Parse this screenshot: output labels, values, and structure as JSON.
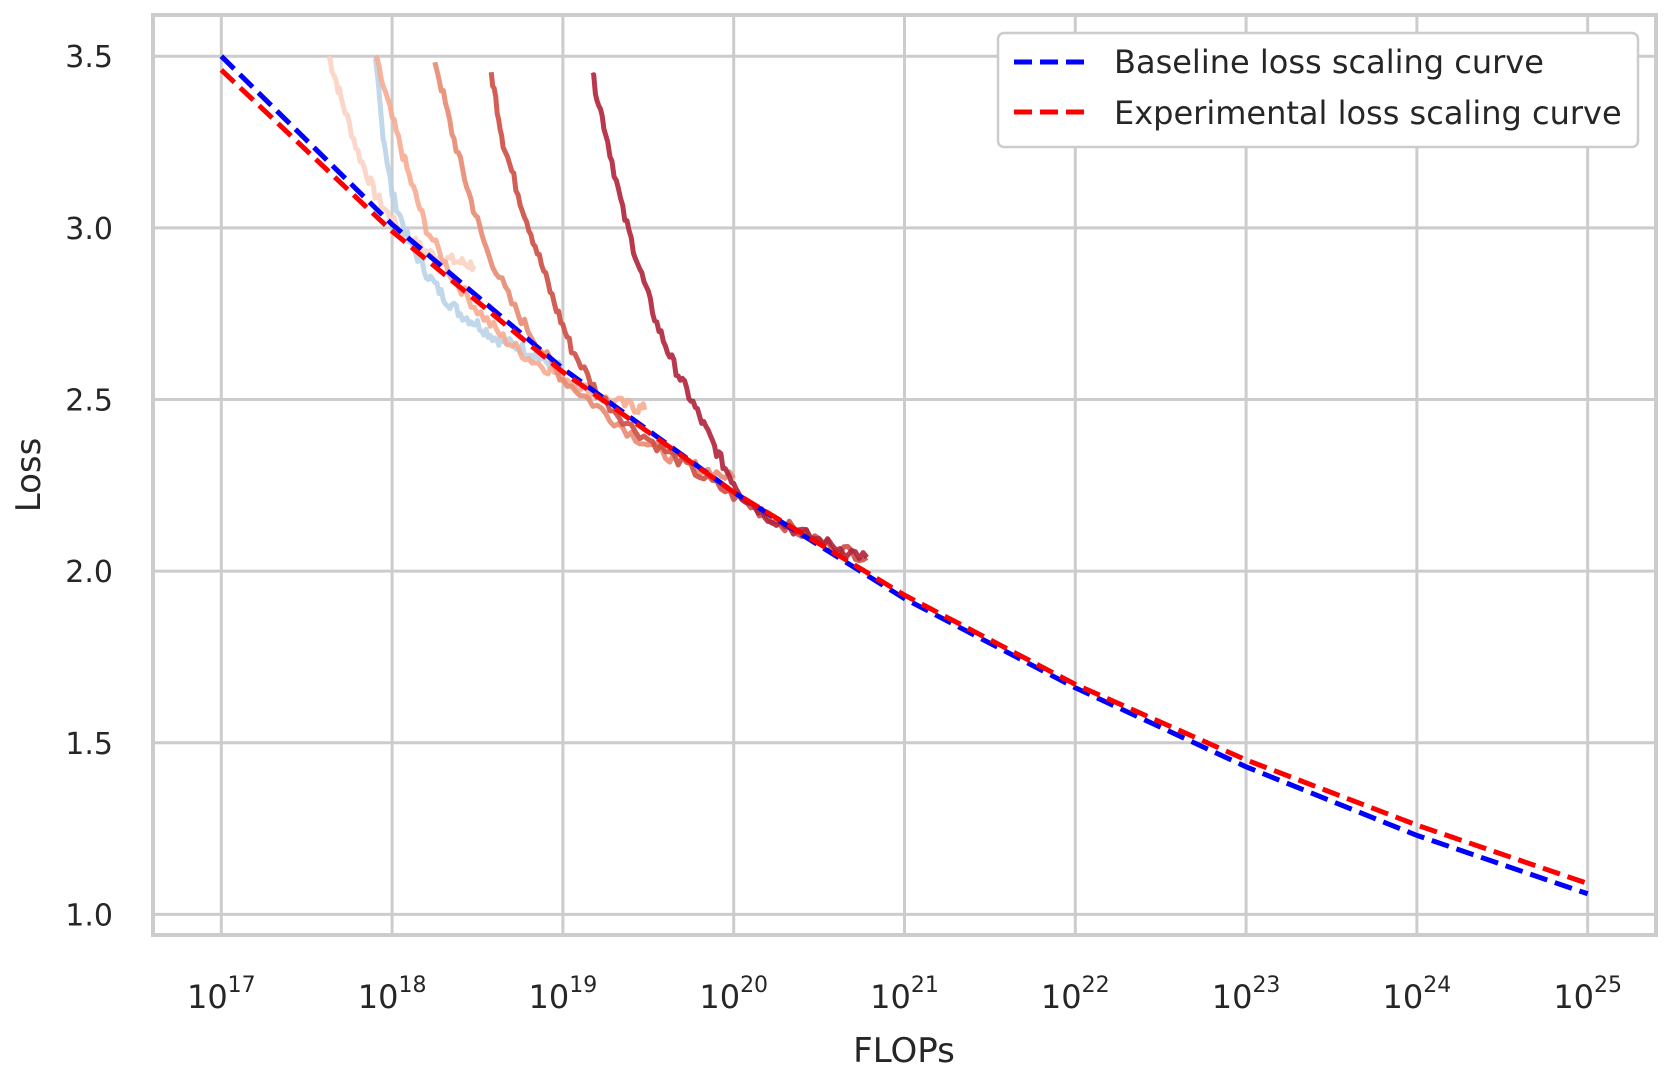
{
  "chart_data": {
    "type": "line",
    "title": "",
    "xlabel": "FLOPs",
    "ylabel": "Loss",
    "xscale": "log",
    "xlim_exponent": [
      16.6,
      25.4
    ],
    "ylim": [
      0.94,
      3.62
    ],
    "x_tick_base": "10",
    "x_tick_exponents": [
      "17",
      "18",
      "19",
      "20",
      "21",
      "22",
      "23",
      "24",
      "25"
    ],
    "y_ticks": [
      "1.0",
      "1.5",
      "2.0",
      "2.5",
      "3.0",
      "3.5"
    ],
    "grid": true,
    "legend_position": "top-right",
    "series": [
      {
        "name": "Baseline loss scaling curve",
        "color": "#0000ff",
        "style": "dashed",
        "x_exponents": [
          17,
          18,
          19,
          20,
          21,
          22,
          23,
          24,
          25
        ],
        "values": [
          3.5,
          3.01,
          2.59,
          2.23,
          1.92,
          1.66,
          1.43,
          1.23,
          1.06
        ]
      },
      {
        "name": "Experimental loss scaling curve",
        "color": "#ff0000",
        "style": "dashed",
        "x_exponents": [
          17,
          18,
          19,
          20,
          21,
          22,
          23,
          24,
          25
        ],
        "values": [
          3.46,
          2.99,
          2.58,
          2.23,
          1.93,
          1.67,
          1.45,
          1.26,
          1.09
        ]
      }
    ],
    "training_runs": [
      {
        "color": "#fbd3c4",
        "x_exponents": [
          17.63,
          17.7,
          17.8,
          17.9,
          18.0,
          18.1,
          18.2,
          18.3,
          18.4,
          18.48
        ],
        "values": [
          3.5,
          3.38,
          3.22,
          3.1,
          3.02,
          2.97,
          2.93,
          2.91,
          2.9,
          2.89
        ]
      },
      {
        "color": "#b9d4e8",
        "x_exponents": [
          17.9,
          17.94,
          18.0,
          18.1,
          18.2,
          18.3,
          18.4,
          18.5,
          18.6,
          18.7,
          18.8,
          18.9,
          19.0
        ],
        "values": [
          3.5,
          3.3,
          3.1,
          2.96,
          2.87,
          2.8,
          2.75,
          2.72,
          2.68,
          2.66,
          2.64,
          2.61,
          2.59
        ]
      },
      {
        "color": "#f6ab90",
        "x_exponents": [
          17.9,
          18.0,
          18.1,
          18.2,
          18.35,
          18.5,
          18.65,
          18.8,
          18.95,
          19.1,
          19.25,
          19.4,
          19.48
        ],
        "values": [
          3.5,
          3.32,
          3.15,
          3.0,
          2.86,
          2.76,
          2.68,
          2.62,
          2.58,
          2.54,
          2.5,
          2.48,
          2.47
        ]
      },
      {
        "color": "#e88a71",
        "x_exponents": [
          18.25,
          18.35,
          18.45,
          18.55,
          18.7,
          18.85,
          19.0,
          19.2,
          19.4,
          19.6,
          19.8,
          20.0
        ],
        "values": [
          3.49,
          3.28,
          3.1,
          2.94,
          2.78,
          2.66,
          2.56,
          2.48,
          2.4,
          2.34,
          2.3,
          2.27
        ]
      },
      {
        "color": "#cd4d42",
        "x_exponents": [
          18.58,
          18.65,
          18.75,
          18.85,
          18.95,
          19.05,
          19.2,
          19.4,
          19.6,
          19.8,
          20.0,
          20.2,
          20.4,
          20.6,
          20.78
        ],
        "values": [
          3.45,
          3.25,
          3.08,
          2.93,
          2.78,
          2.65,
          2.52,
          2.42,
          2.35,
          2.28,
          2.22,
          2.16,
          2.11,
          2.07,
          2.04
        ]
      },
      {
        "color": "#b0243a",
        "x_exponents": [
          19.17,
          19.25,
          19.35,
          19.45,
          19.55,
          19.65,
          19.75,
          19.85,
          19.95,
          20.05,
          20.2,
          20.4,
          20.6,
          20.78
        ],
        "values": [
          3.45,
          3.28,
          3.05,
          2.88,
          2.72,
          2.6,
          2.5,
          2.4,
          2.3,
          2.22,
          2.16,
          2.11,
          2.07,
          2.04
        ]
      }
    ]
  }
}
